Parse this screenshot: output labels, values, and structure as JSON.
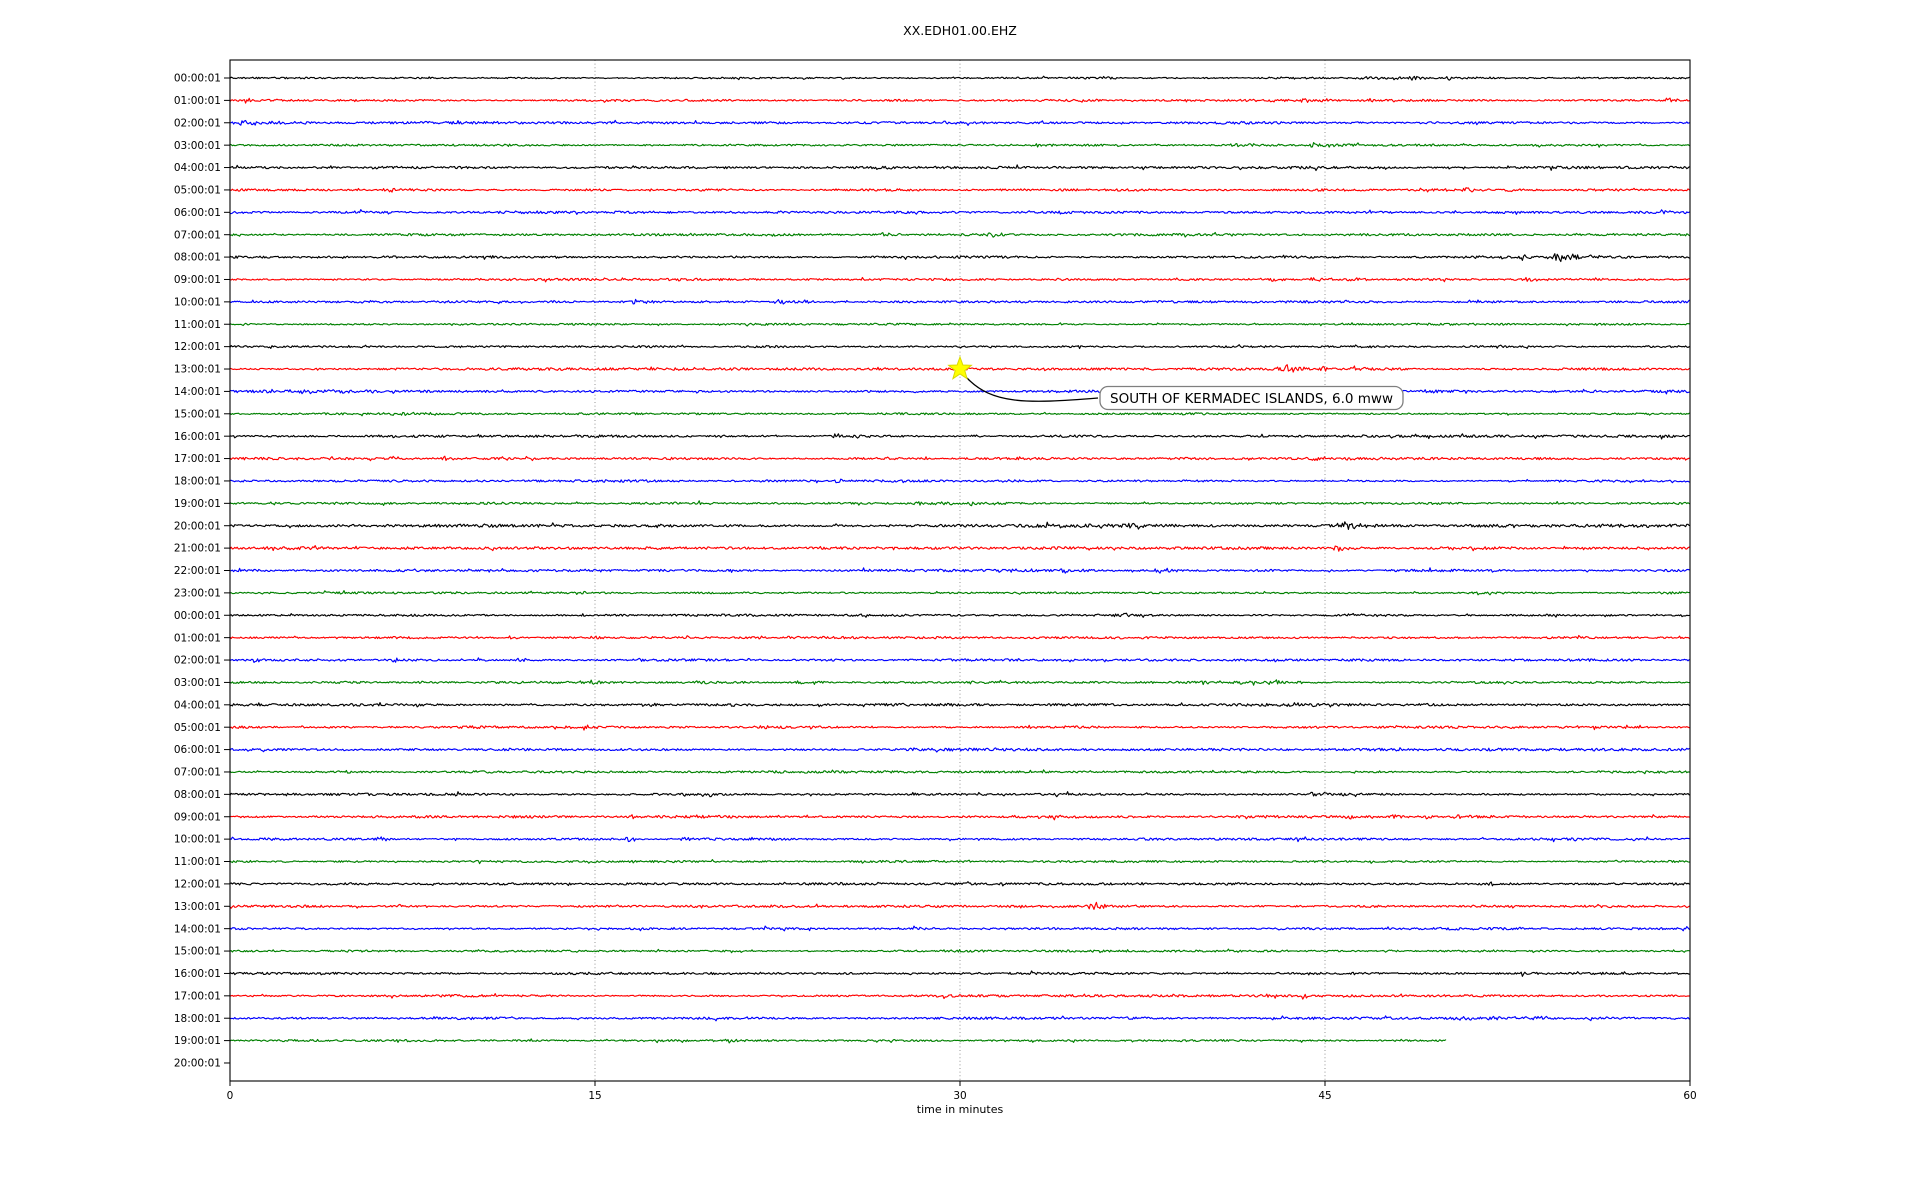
{
  "title": "XX.EDH01.00.EHZ",
  "axes": {
    "x_label": "time in minutes",
    "x_ticks": [
      0,
      15,
      30,
      45,
      60
    ],
    "x_grid": [
      15,
      30,
      45
    ],
    "x_range": [
      0,
      60
    ]
  },
  "annotation": {
    "text": "SOUTH OF KERMADEC ISLANDS, 6.0 mww",
    "marker": "star-icon",
    "marker_color": "#ffff00",
    "row_index": 13,
    "time_minutes": 30
  },
  "palette": {
    "black": "#000000",
    "red": "#ff0000",
    "blue": "#0000ff",
    "green": "#008000"
  },
  "chart_data": {
    "type": "line",
    "subtype": "helicorder-dayplot",
    "minutes_per_line": 60,
    "grid": "vertical-dotted",
    "rows": [
      {
        "label": "00:00:01",
        "color": "black",
        "noise": 0.7,
        "end": 60,
        "events": [
          {
            "t": 35.8,
            "a": 1.2,
            "w": 1.0
          },
          {
            "t": 43.0,
            "a": 1.5,
            "w": 1.5
          },
          {
            "t": 46.5,
            "a": 1.6,
            "w": 2.0
          },
          {
            "t": 48.5,
            "a": 1.8,
            "w": 2.5
          },
          {
            "t": 50.0,
            "a": 1.5,
            "w": 1.5
          }
        ]
      },
      {
        "label": "01:00:01",
        "color": "red",
        "noise": 0.9,
        "end": 60,
        "events": [
          {
            "t": 0.66,
            "a": 3.0,
            "w": 0.25
          },
          {
            "t": 1.48,
            "a": 3.0,
            "w": 0.25
          },
          {
            "t": 42.5,
            "a": 2.2,
            "w": 0.8
          },
          {
            "t": 44.1,
            "a": 2.8,
            "w": 0.6
          },
          {
            "t": 59.0,
            "a": 2.5,
            "w": 0.5
          }
        ]
      },
      {
        "label": "02:00:01",
        "color": "blue",
        "noise": 1.1,
        "end": 60,
        "events": [
          {
            "t": 0.5,
            "a": 2.0,
            "w": 2.0
          },
          {
            "t": 29.0,
            "a": 1.2,
            "w": 1.5
          }
        ]
      },
      {
        "label": "03:00:01",
        "color": "green",
        "noise": 0.9,
        "end": 60,
        "events": [
          {
            "t": 33.0,
            "a": 1.5,
            "w": 0.8
          },
          {
            "t": 36.5,
            "a": 1.3,
            "w": 0.6
          },
          {
            "t": 41.3,
            "a": 2.0,
            "w": 1.0
          },
          {
            "t": 44.5,
            "a": 2.0,
            "w": 1.2
          }
        ]
      },
      {
        "label": "04:00:01",
        "color": "black",
        "noise": 1.1,
        "end": 60,
        "events": [
          {
            "t": 6.0,
            "a": 1.3,
            "w": 0.5
          },
          {
            "t": 16.6,
            "a": 1.8,
            "w": 0.8
          },
          {
            "t": 29.0,
            "a": 1.7,
            "w": 0.7
          }
        ]
      },
      {
        "label": "05:00:01",
        "color": "red",
        "noise": 1.0,
        "end": 60,
        "events": [
          {
            "t": 6.4,
            "a": 2.2,
            "w": 0.7
          },
          {
            "t": 40.0,
            "a": 1.5,
            "w": 0.5
          },
          {
            "t": 49.0,
            "a": 1.8,
            "w": 1.0
          },
          {
            "t": 50.6,
            "a": 2.2,
            "w": 0.8
          },
          {
            "t": 52.5,
            "a": 1.8,
            "w": 0.6
          }
        ]
      },
      {
        "label": "06:00:01",
        "color": "blue",
        "noise": 1.1,
        "end": 60,
        "events": [
          {
            "t": 20.0,
            "a": 1.2,
            "w": 0.8
          },
          {
            "t": 58.5,
            "a": 2.5,
            "w": 0.7
          }
        ]
      },
      {
        "label": "07:00:01",
        "color": "green",
        "noise": 1.0,
        "end": 60,
        "events": [
          {
            "t": 22.0,
            "a": 1.3,
            "w": 0.5
          },
          {
            "t": 26.8,
            "a": 2.0,
            "w": 0.7
          },
          {
            "t": 31.2,
            "a": 2.5,
            "w": 0.8
          }
        ]
      },
      {
        "label": "08:00:01",
        "color": "black",
        "noise": 1.0,
        "end": 60,
        "events": [
          {
            "t": 20.4,
            "a": 1.8,
            "w": 0.5
          },
          {
            "t": 50.8,
            "a": 2.5,
            "w": 0.5
          },
          {
            "t": 53.1,
            "a": 3.5,
            "w": 0.5
          },
          {
            "t": 54.5,
            "a": 7.0,
            "w": 1.2
          },
          {
            "t": 56.0,
            "a": 2.0,
            "w": 1.5
          }
        ]
      },
      {
        "label": "09:00:01",
        "color": "red",
        "noise": 1.0,
        "end": 60,
        "events": [
          {
            "t": 34.0,
            "a": 1.3,
            "w": 0.5
          },
          {
            "t": 42.8,
            "a": 1.8,
            "w": 1.0
          },
          {
            "t": 44.5,
            "a": 2.0,
            "w": 1.2
          },
          {
            "t": 46.0,
            "a": 1.8,
            "w": 0.8
          },
          {
            "t": 53.3,
            "a": 1.8,
            "w": 0.6
          }
        ]
      },
      {
        "label": "10:00:01",
        "color": "blue",
        "noise": 1.0,
        "end": 60,
        "events": [
          {
            "t": 16.6,
            "a": 3.5,
            "w": 0.5
          },
          {
            "t": 22.5,
            "a": 2.8,
            "w": 0.8
          },
          {
            "t": 23.3,
            "a": 2.5,
            "w": 0.5
          }
        ]
      },
      {
        "label": "11:00:01",
        "color": "green",
        "noise": 0.85,
        "end": 60,
        "events": []
      },
      {
        "label": "12:00:01",
        "color": "black",
        "noise": 0.95,
        "end": 60,
        "events": []
      },
      {
        "label": "13:00:01",
        "color": "red",
        "noise": 1.1,
        "end": 60,
        "events": [
          {
            "t": 43.3,
            "a": 4.5,
            "w": 1.4
          },
          {
            "t": 44.8,
            "a": 2.5,
            "w": 1.5
          }
        ]
      },
      {
        "label": "14:00:01",
        "color": "blue",
        "noise": 1.2,
        "end": 60,
        "events": [
          {
            "t": 2.0,
            "a": 1.5,
            "w": 3.0
          },
          {
            "t": 44.0,
            "a": 1.4,
            "w": 2.0
          },
          {
            "t": 55.6,
            "a": 2.0,
            "w": 0.6
          }
        ]
      },
      {
        "label": "15:00:01",
        "color": "green",
        "noise": 0.95,
        "end": 60,
        "events": [
          {
            "t": 6.5,
            "a": 1.6,
            "w": 1.5
          }
        ]
      },
      {
        "label": "16:00:01",
        "color": "black",
        "noise": 1.0,
        "end": 60,
        "events": [
          {
            "t": 20.0,
            "a": 1.5,
            "w": 0.5
          },
          {
            "t": 24.8,
            "a": 2.8,
            "w": 0.6
          },
          {
            "t": 25.8,
            "a": 2.5,
            "w": 0.5
          },
          {
            "t": 30.5,
            "a": 1.4,
            "w": 0.5
          }
        ]
      },
      {
        "label": "17:00:01",
        "color": "red",
        "noise": 1.0,
        "end": 60,
        "events": [
          {
            "t": 6.6,
            "a": 2.8,
            "w": 0.4
          },
          {
            "t": 8.7,
            "a": 2.8,
            "w": 0.4
          },
          {
            "t": 26.0,
            "a": 1.5,
            "w": 0.5
          },
          {
            "t": 32.4,
            "a": 2.0,
            "w": 0.5
          },
          {
            "t": 44.3,
            "a": 2.2,
            "w": 0.8
          },
          {
            "t": 45.6,
            "a": 2.2,
            "w": 0.6
          }
        ]
      },
      {
        "label": "18:00:01",
        "color": "blue",
        "noise": 1.0,
        "end": 60,
        "events": [
          {
            "t": 10.0,
            "a": 1.3,
            "w": 0.6
          },
          {
            "t": 24.8,
            "a": 3.2,
            "w": 0.5
          }
        ]
      },
      {
        "label": "19:00:01",
        "color": "green",
        "noise": 0.95,
        "end": 60,
        "events": [
          {
            "t": 19.2,
            "a": 2.5,
            "w": 0.5
          },
          {
            "t": 28.2,
            "a": 2.2,
            "w": 0.6
          },
          {
            "t": 29.3,
            "a": 2.0,
            "w": 0.5
          },
          {
            "t": 30.4,
            "a": 2.0,
            "w": 0.5
          }
        ]
      },
      {
        "label": "20:00:01",
        "color": "black",
        "noise": 1.4,
        "end": 60,
        "events": [
          {
            "t": 10.0,
            "a": 1.5,
            "w": 0.5
          },
          {
            "t": 33.6,
            "a": 2.5,
            "w": 0.4
          },
          {
            "t": 36.9,
            "a": 2.5,
            "w": 0.4
          },
          {
            "t": 45.6,
            "a": 5.0,
            "w": 0.8
          }
        ]
      },
      {
        "label": "21:00:01",
        "color": "red",
        "noise": 1.3,
        "end": 60,
        "events": [
          {
            "t": 45.4,
            "a": 3.5,
            "w": 0.6
          }
        ]
      },
      {
        "label": "22:00:01",
        "color": "blue",
        "noise": 1.1,
        "end": 60,
        "events": [
          {
            "t": 26.0,
            "a": 1.8,
            "w": 0.5
          },
          {
            "t": 32.0,
            "a": 1.6,
            "w": 0.5
          },
          {
            "t": 34.2,
            "a": 2.5,
            "w": 0.5
          },
          {
            "t": 38.0,
            "a": 2.2,
            "w": 0.8
          }
        ]
      },
      {
        "label": "23:00:01",
        "color": "green",
        "noise": 0.9,
        "end": 60,
        "events": []
      },
      {
        "label": "00:00:01",
        "color": "black",
        "noise": 1.0,
        "end": 60,
        "events": [
          {
            "t": 36.5,
            "a": 1.5,
            "w": 1.5
          },
          {
            "t": 46.0,
            "a": 1.4,
            "w": 1.0
          }
        ]
      },
      {
        "label": "01:00:01",
        "color": "red",
        "noise": 1.0,
        "end": 60,
        "events": [
          {
            "t": 11.5,
            "a": 1.5,
            "w": 0.5
          },
          {
            "t": 15.0,
            "a": 1.3,
            "w": 0.4
          },
          {
            "t": 23.0,
            "a": 1.4,
            "w": 0.5
          }
        ]
      },
      {
        "label": "02:00:01",
        "color": "blue",
        "noise": 1.0,
        "end": 60,
        "events": [
          {
            "t": 1.0,
            "a": 1.8,
            "w": 0.4
          },
          {
            "t": 6.8,
            "a": 2.2,
            "w": 0.4
          },
          {
            "t": 10.2,
            "a": 2.0,
            "w": 0.4
          },
          {
            "t": 11.8,
            "a": 2.8,
            "w": 0.5
          },
          {
            "t": 16.8,
            "a": 2.5,
            "w": 0.4
          }
        ]
      },
      {
        "label": "03:00:01",
        "color": "green",
        "noise": 1.0,
        "end": 60,
        "events": [
          {
            "t": 7.8,
            "a": 1.8,
            "w": 0.4
          },
          {
            "t": 14.9,
            "a": 2.5,
            "w": 0.5
          },
          {
            "t": 19.2,
            "a": 1.6,
            "w": 0.4
          },
          {
            "t": 23.3,
            "a": 2.2,
            "w": 0.5
          },
          {
            "t": 24.0,
            "a": 2.0,
            "w": 0.4
          },
          {
            "t": 40.0,
            "a": 1.8,
            "w": 1.5
          },
          {
            "t": 43.0,
            "a": 1.8,
            "w": 1.5
          }
        ]
      },
      {
        "label": "04:00:01",
        "color": "black",
        "noise": 1.2,
        "end": 60,
        "events": [
          {
            "t": 12.0,
            "a": 1.4,
            "w": 0.4
          },
          {
            "t": 17.3,
            "a": 2.2,
            "w": 0.5
          },
          {
            "t": 20.7,
            "a": 1.8,
            "w": 0.5
          },
          {
            "t": 24.2,
            "a": 2.0,
            "w": 0.5
          }
        ]
      },
      {
        "label": "05:00:01",
        "color": "red",
        "noise": 1.1,
        "end": 60,
        "events": [
          {
            "t": 14.5,
            "a": 1.5,
            "w": 0.4
          },
          {
            "t": 18.0,
            "a": 2.0,
            "w": 0.4
          },
          {
            "t": 21.8,
            "a": 2.0,
            "w": 0.5
          }
        ]
      },
      {
        "label": "06:00:01",
        "color": "blue",
        "noise": 1.2,
        "end": 60,
        "events": [
          {
            "t": 48.0,
            "a": 1.4,
            "w": 1.0
          }
        ]
      },
      {
        "label": "07:00:01",
        "color": "green",
        "noise": 0.95,
        "end": 60,
        "events": [
          {
            "t": 9.7,
            "a": 1.4,
            "w": 0.4
          },
          {
            "t": 12.0,
            "a": 1.6,
            "w": 0.5
          }
        ]
      },
      {
        "label": "08:00:01",
        "color": "black",
        "noise": 1.0,
        "end": 60,
        "events": [
          {
            "t": 2.2,
            "a": 1.4,
            "w": 0.4
          },
          {
            "t": 35.8,
            "a": 1.4,
            "w": 0.5
          },
          {
            "t": 44.5,
            "a": 2.8,
            "w": 0.6
          }
        ]
      },
      {
        "label": "09:00:01",
        "color": "red",
        "noise": 1.1,
        "end": 60,
        "events": [
          {
            "t": 16.5,
            "a": 1.5,
            "w": 0.4
          },
          {
            "t": 36.9,
            "a": 2.0,
            "w": 0.5
          },
          {
            "t": 44.4,
            "a": 2.8,
            "w": 0.5
          },
          {
            "t": 46.0,
            "a": 2.5,
            "w": 0.5
          },
          {
            "t": 47.7,
            "a": 2.8,
            "w": 0.5
          },
          {
            "t": 49.2,
            "a": 2.5,
            "w": 0.5
          },
          {
            "t": 50.3,
            "a": 2.2,
            "w": 0.5
          }
        ]
      },
      {
        "label": "10:00:01",
        "color": "blue",
        "noise": 1.0,
        "end": 60,
        "events": [
          {
            "t": 1.5,
            "a": 2.5,
            "w": 0.4
          },
          {
            "t": 6.1,
            "a": 2.2,
            "w": 0.4
          },
          {
            "t": 16.3,
            "a": 3.0,
            "w": 0.5
          },
          {
            "t": 18.6,
            "a": 2.5,
            "w": 0.5
          },
          {
            "t": 19.4,
            "a": 2.2,
            "w": 0.4
          }
        ]
      },
      {
        "label": "11:00:01",
        "color": "green",
        "noise": 0.9,
        "end": 60,
        "events": []
      },
      {
        "label": "12:00:01",
        "color": "black",
        "noise": 1.0,
        "end": 60,
        "events": [
          {
            "t": 44.0,
            "a": 1.3,
            "w": 0.5
          },
          {
            "t": 51.7,
            "a": 2.2,
            "w": 0.8
          }
        ]
      },
      {
        "label": "13:00:01",
        "color": "red",
        "noise": 1.1,
        "end": 60,
        "events": [
          {
            "t": 6.9,
            "a": 2.2,
            "w": 0.5
          },
          {
            "t": 35.4,
            "a": 5.5,
            "w": 0.7
          }
        ]
      },
      {
        "label": "14:00:01",
        "color": "blue",
        "noise": 1.0,
        "end": 60,
        "events": [
          {
            "t": 28.1,
            "a": 3.2,
            "w": 0.5
          }
        ]
      },
      {
        "label": "15:00:01",
        "color": "green",
        "noise": 0.9,
        "end": 60,
        "events": [
          {
            "t": 47.5,
            "a": 1.8,
            "w": 0.6
          }
        ]
      },
      {
        "label": "16:00:01",
        "color": "black",
        "noise": 1.1,
        "end": 60,
        "events": [
          {
            "t": 46.0,
            "a": 1.3,
            "w": 0.5
          },
          {
            "t": 53.1,
            "a": 2.2,
            "w": 0.5
          },
          {
            "t": 57.2,
            "a": 1.8,
            "w": 0.5
          }
        ]
      },
      {
        "label": "17:00:01",
        "color": "red",
        "noise": 1.0,
        "end": 60,
        "events": [
          {
            "t": 35.0,
            "a": 1.3,
            "w": 0.4
          },
          {
            "t": 42.4,
            "a": 2.0,
            "w": 0.5
          },
          {
            "t": 44.1,
            "a": 2.8,
            "w": 0.5
          }
        ]
      },
      {
        "label": "18:00:01",
        "color": "blue",
        "noise": 1.1,
        "end": 60,
        "events": [
          {
            "t": 50.5,
            "a": 1.8,
            "w": 2.0
          },
          {
            "t": 53.5,
            "a": 1.8,
            "w": 1.5
          },
          {
            "t": 55.9,
            "a": 1.8,
            "w": 0.6
          }
        ]
      },
      {
        "label": "19:00:01",
        "color": "green",
        "noise": 0.95,
        "end": 50,
        "events": [
          {
            "t": 20.4,
            "a": 2.2,
            "w": 0.5
          }
        ]
      },
      {
        "label": "20:00:01",
        "color": "black",
        "noise": 0,
        "end": 0,
        "events": []
      }
    ]
  }
}
